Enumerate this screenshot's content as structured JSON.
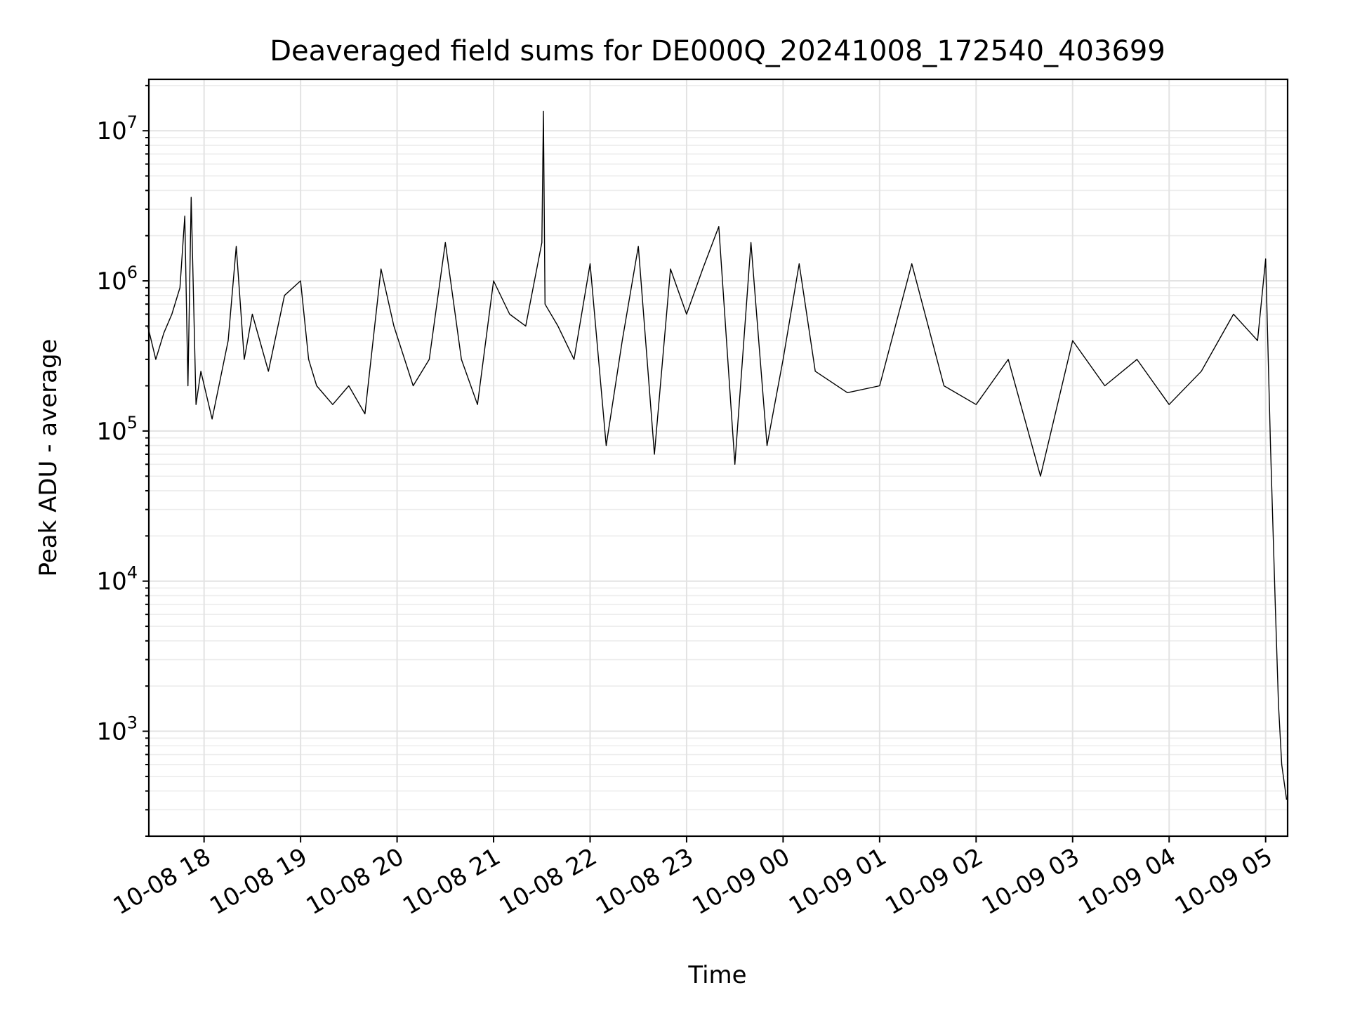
{
  "chart_data": {
    "type": "line",
    "title": "Deaveraged field sums for DE000Q_20241008_172540_403699",
    "xlabel": "Time",
    "ylabel": "Peak ADU - average",
    "yscale": "log",
    "ylim": [
      200,
      22000000
    ],
    "xlim": [
      "2024-10-08 17:25:40",
      "2024-10-09 05:13:40"
    ],
    "grid": true,
    "line_color": "#000000",
    "x_ticks": [
      {
        "value": "2024-10-08 18:00",
        "label": "10-08 18"
      },
      {
        "value": "2024-10-08 19:00",
        "label": "10-08 19"
      },
      {
        "value": "2024-10-08 20:00",
        "label": "10-08 20"
      },
      {
        "value": "2024-10-08 21:00",
        "label": "10-08 21"
      },
      {
        "value": "2024-10-08 22:00",
        "label": "10-08 22"
      },
      {
        "value": "2024-10-08 23:00",
        "label": "10-08 23"
      },
      {
        "value": "2024-10-09 00:00",
        "label": "10-09 00"
      },
      {
        "value": "2024-10-09 01:00",
        "label": "10-09 01"
      },
      {
        "value": "2024-10-09 02:00",
        "label": "10-09 02"
      },
      {
        "value": "2024-10-09 03:00",
        "label": "10-09 03"
      },
      {
        "value": "2024-10-09 04:00",
        "label": "10-09 04"
      },
      {
        "value": "2024-10-09 05:00",
        "label": "10-09 05"
      }
    ],
    "y_ticks": [
      {
        "value": 1000,
        "base": "10",
        "exp": "3"
      },
      {
        "value": 10000,
        "base": "10",
        "exp": "4"
      },
      {
        "value": 100000,
        "base": "10",
        "exp": "5"
      },
      {
        "value": 1000000,
        "base": "10",
        "exp": "6"
      },
      {
        "value": 10000000,
        "base": "10",
        "exp": "7"
      }
    ],
    "series": [
      {
        "x": [
          "2024-10-08 17:25",
          "2024-10-08 17:30",
          "2024-10-08 17:35",
          "2024-10-08 17:40",
          "2024-10-08 17:45",
          "2024-10-08 17:48",
          "2024-10-08 17:50",
          "2024-10-08 17:52",
          "2024-10-08 17:55",
          "2024-10-08 17:58",
          "2024-10-08 18:05",
          "2024-10-08 18:15",
          "2024-10-08 18:20",
          "2024-10-08 18:25",
          "2024-10-08 18:30",
          "2024-10-08 18:40",
          "2024-10-08 18:50",
          "2024-10-08 19:00",
          "2024-10-08 19:05",
          "2024-10-08 19:10",
          "2024-10-08 19:20",
          "2024-10-08 19:30",
          "2024-10-08 19:40",
          "2024-10-08 19:50",
          "2024-10-08 19:58",
          "2024-10-08 20:10",
          "2024-10-08 20:20",
          "2024-10-08 20:30",
          "2024-10-08 20:40",
          "2024-10-08 20:50",
          "2024-10-08 21:00",
          "2024-10-08 21:10",
          "2024-10-08 21:20",
          "2024-10-08 21:30",
          "2024-10-08 21:31",
          "2024-10-08 21:32",
          "2024-10-08 21:40",
          "2024-10-08 21:50",
          "2024-10-08 22:00",
          "2024-10-08 22:10",
          "2024-10-08 22:20",
          "2024-10-08 22:30",
          "2024-10-08 22:40",
          "2024-10-08 22:50",
          "2024-10-08 23:00",
          "2024-10-08 23:10",
          "2024-10-08 23:20",
          "2024-10-08 23:30",
          "2024-10-08 23:40",
          "2024-10-08 23:50",
          "2024-10-09 00:00",
          "2024-10-09 00:10",
          "2024-10-09 00:20",
          "2024-10-09 00:40",
          "2024-10-09 01:00",
          "2024-10-09 01:20",
          "2024-10-09 01:40",
          "2024-10-09 02:00",
          "2024-10-09 02:20",
          "2024-10-09 02:40",
          "2024-10-09 03:00",
          "2024-10-09 03:20",
          "2024-10-09 03:40",
          "2024-10-09 04:00",
          "2024-10-09 04:20",
          "2024-10-09 04:40",
          "2024-10-09 04:55",
          "2024-10-09 05:00",
          "2024-10-09 05:03",
          "2024-10-09 05:06",
          "2024-10-09 05:08",
          "2024-10-09 05:10",
          "2024-10-09 05:13"
        ],
        "y": [
          500000,
          300000,
          450000,
          600000,
          900000,
          2700000,
          200000,
          3600000,
          150000,
          250000,
          120000,
          400000,
          1700000,
          300000,
          600000,
          250000,
          800000,
          1000000,
          300000,
          200000,
          150000,
          200000,
          130000,
          1200000,
          500000,
          200000,
          300000,
          1800000,
          300000,
          150000,
          1000000,
          600000,
          500000,
          1800000,
          13500000,
          700000,
          500000,
          300000,
          1300000,
          80000,
          400000,
          1700000,
          70000,
          1200000,
          600000,
          1200000,
          2300000,
          60000,
          1800000,
          80000,
          300000,
          1300000,
          250000,
          180000,
          200000,
          1300000,
          200000,
          150000,
          300000,
          50000,
          400000,
          200000,
          300000,
          150000,
          250000,
          600000,
          400000,
          1400000,
          80000,
          7000,
          1500,
          600,
          350
        ]
      }
    ]
  }
}
